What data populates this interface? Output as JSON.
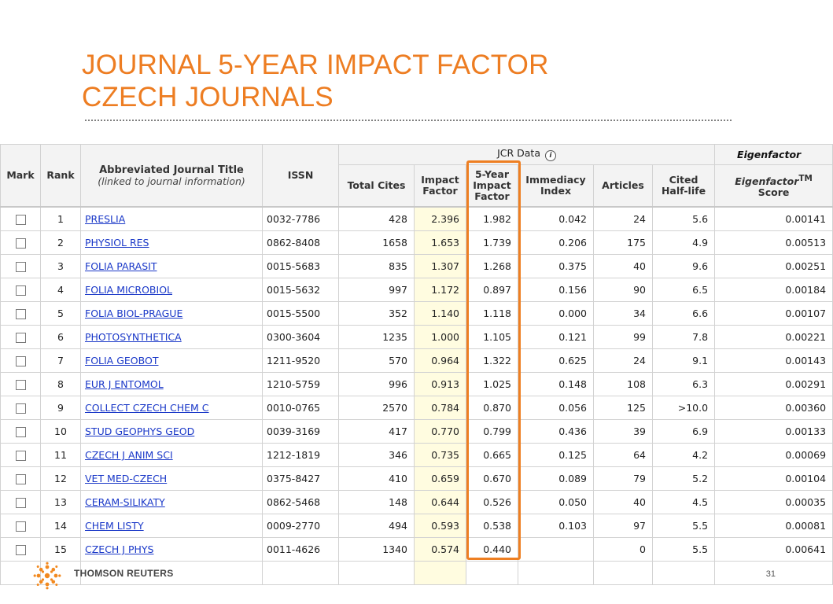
{
  "slide": {
    "title_line1": "JOURNAL 5-YEAR IMPACT FACTOR",
    "title_line2": "CZECH JOURNALS",
    "brand": "THOMSON REUTERS",
    "page_number": "31",
    "accent_color": "#ed7d22"
  },
  "table": {
    "headers": {
      "mark": "Mark",
      "rank": "Rank",
      "title_main": "Abbreviated Journal Title",
      "title_sub": "(linked to journal information)",
      "issn": "ISSN",
      "jcr_group": "JCR Data",
      "eigen_group": "Eigenfactor",
      "total_cites": "Total Cites",
      "impact_factor_1": "Impact",
      "impact_factor_2": "Factor",
      "five_year_1": "5-Year",
      "five_year_2": "Impact",
      "five_year_3": "Factor",
      "immediacy_1": "Immediacy",
      "immediacy_2": "Index",
      "articles": "Articles",
      "half_life_1": "Cited",
      "half_life_2": "Half-life",
      "eigen_score_1": "Eigenfactor",
      "eigen_score_tm": "TM",
      "eigen_score_2": "Score"
    },
    "rows": [
      {
        "rank": "1",
        "title": "PRESLIA",
        "issn": "0032-7786",
        "total_cites": "428",
        "impact_factor": "2.396",
        "five_year": "1.982",
        "immediacy": "0.042",
        "articles": "24",
        "half_life": "5.6",
        "eigen": "0.00141"
      },
      {
        "rank": "2",
        "title": "PHYSIOL RES",
        "issn": "0862-8408",
        "total_cites": "1658",
        "impact_factor": "1.653",
        "five_year": "1.739",
        "immediacy": "0.206",
        "articles": "175",
        "half_life": "4.9",
        "eigen": "0.00513"
      },
      {
        "rank": "3",
        "title": "FOLIA PARASIT",
        "issn": "0015-5683",
        "total_cites": "835",
        "impact_factor": "1.307",
        "five_year": "1.268",
        "immediacy": "0.375",
        "articles": "40",
        "half_life": "9.6",
        "eigen": "0.00251"
      },
      {
        "rank": "4",
        "title": "FOLIA MICROBIOL",
        "issn": "0015-5632",
        "total_cites": "997",
        "impact_factor": "1.172",
        "five_year": "0.897",
        "immediacy": "0.156",
        "articles": "90",
        "half_life": "6.5",
        "eigen": "0.00184"
      },
      {
        "rank": "5",
        "title": "FOLIA BIOL-PRAGUE",
        "issn": "0015-5500",
        "total_cites": "352",
        "impact_factor": "1.140",
        "five_year": "1.118",
        "immediacy": "0.000",
        "articles": "34",
        "half_life": "6.6",
        "eigen": "0.00107"
      },
      {
        "rank": "6",
        "title": "PHOTOSYNTHETICA",
        "issn": "0300-3604",
        "total_cites": "1235",
        "impact_factor": "1.000",
        "five_year": "1.105",
        "immediacy": "0.121",
        "articles": "99",
        "half_life": "7.8",
        "eigen": "0.00221"
      },
      {
        "rank": "7",
        "title": "FOLIA GEOBOT",
        "issn": "1211-9520",
        "total_cites": "570",
        "impact_factor": "0.964",
        "five_year": "1.322",
        "immediacy": "0.625",
        "articles": "24",
        "half_life": "9.1",
        "eigen": "0.00143"
      },
      {
        "rank": "8",
        "title": "EUR J ENTOMOL",
        "issn": "1210-5759",
        "total_cites": "996",
        "impact_factor": "0.913",
        "five_year": "1.025",
        "immediacy": "0.148",
        "articles": "108",
        "half_life": "6.3",
        "eigen": "0.00291"
      },
      {
        "rank": "9",
        "title": "COLLECT CZECH CHEM C",
        "issn": "0010-0765",
        "total_cites": "2570",
        "impact_factor": "0.784",
        "five_year": "0.870",
        "immediacy": "0.056",
        "articles": "125",
        "half_life": ">10.0",
        "eigen": "0.00360"
      },
      {
        "rank": "10",
        "title": "STUD GEOPHYS GEOD",
        "issn": "0039-3169",
        "total_cites": "417",
        "impact_factor": "0.770",
        "five_year": "0.799",
        "immediacy": "0.436",
        "articles": "39",
        "half_life": "6.9",
        "eigen": "0.00133"
      },
      {
        "rank": "11",
        "title": "CZECH J ANIM SCI",
        "issn": "1212-1819",
        "total_cites": "346",
        "impact_factor": "0.735",
        "five_year": "0.665",
        "immediacy": "0.125",
        "articles": "64",
        "half_life": "4.2",
        "eigen": "0.00069"
      },
      {
        "rank": "12",
        "title": "VET MED-CZECH",
        "issn": "0375-8427",
        "total_cites": "410",
        "impact_factor": "0.659",
        "five_year": "0.670",
        "immediacy": "0.089",
        "articles": "79",
        "half_life": "5.2",
        "eigen": "0.00104"
      },
      {
        "rank": "13",
        "title": "CERAM-SILIKATY",
        "issn": "0862-5468",
        "total_cites": "148",
        "impact_factor": "0.644",
        "five_year": "0.526",
        "immediacy": "0.050",
        "articles": "40",
        "half_life": "4.5",
        "eigen": "0.00035"
      },
      {
        "rank": "14",
        "title": "CHEM LISTY",
        "issn": "0009-2770",
        "total_cites": "494",
        "impact_factor": "0.593",
        "five_year": "0.538",
        "immediacy": "0.103",
        "articles": "97",
        "half_life": "5.5",
        "eigen": "0.00081"
      },
      {
        "rank": "15",
        "title": "CZECH J PHYS",
        "issn": "0011-4626",
        "total_cites": "1340",
        "impact_factor": "0.574",
        "five_year": "0.440",
        "immediacy": "",
        "articles": "0",
        "half_life": "5.5",
        "eigen": "0.00641"
      },
      {
        "rank": "",
        "title": "",
        "issn": "",
        "total_cites": "",
        "impact_factor": "",
        "five_year": "",
        "immediacy": "",
        "articles": "",
        "half_life": "",
        "eigen": ""
      }
    ]
  }
}
